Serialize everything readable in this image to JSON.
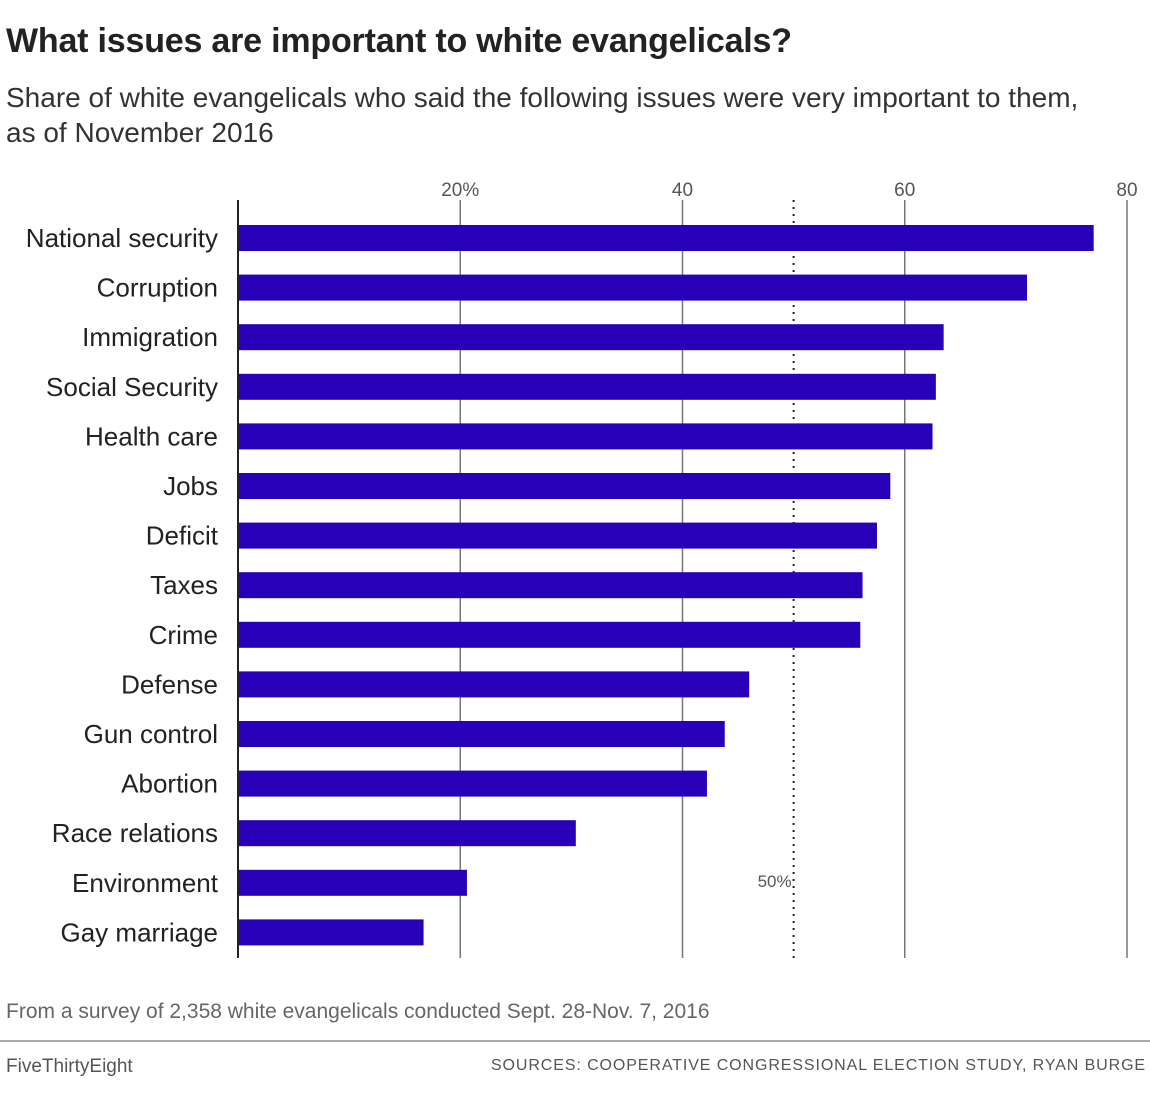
{
  "title": "What issues are important to white evangelicals?",
  "subtitle": "Share of white evangelicals who said the following issues were very important to them, as of November 2016",
  "footnote": "From a survey of 2,358 white evangelicals conducted Sept. 28-Nov. 7, 2016",
  "brand": "FiveThirtyEight",
  "sources": "SOURCES: COOPERATIVE CONGRESSIONAL ELECTION STUDY, RYAN BURGE",
  "colors": {
    "bar": "#2800b8",
    "grid": "#777777",
    "axis": "#222222"
  },
  "chart_data": {
    "type": "bar",
    "orientation": "horizontal",
    "categories": [
      "National security",
      "Corruption",
      "Immigration",
      "Social Security",
      "Health care",
      "Jobs",
      "Deficit",
      "Taxes",
      "Crime",
      "Defense",
      "Gun control",
      "Abortion",
      "Race relations",
      "Environment",
      "Gay marriage"
    ],
    "values": [
      77,
      71,
      63.5,
      62.8,
      62.5,
      58.7,
      57.5,
      56.2,
      56,
      46,
      43.8,
      42.2,
      30.4,
      20.6,
      16.7
    ],
    "xlim": [
      0,
      80
    ],
    "ticks": [
      20,
      40,
      60,
      80
    ],
    "tick_labels": [
      "20%",
      "40",
      "60",
      "80"
    ],
    "reference_line": {
      "value": 50,
      "label": "50%",
      "style": "dotted"
    },
    "grid": true
  }
}
